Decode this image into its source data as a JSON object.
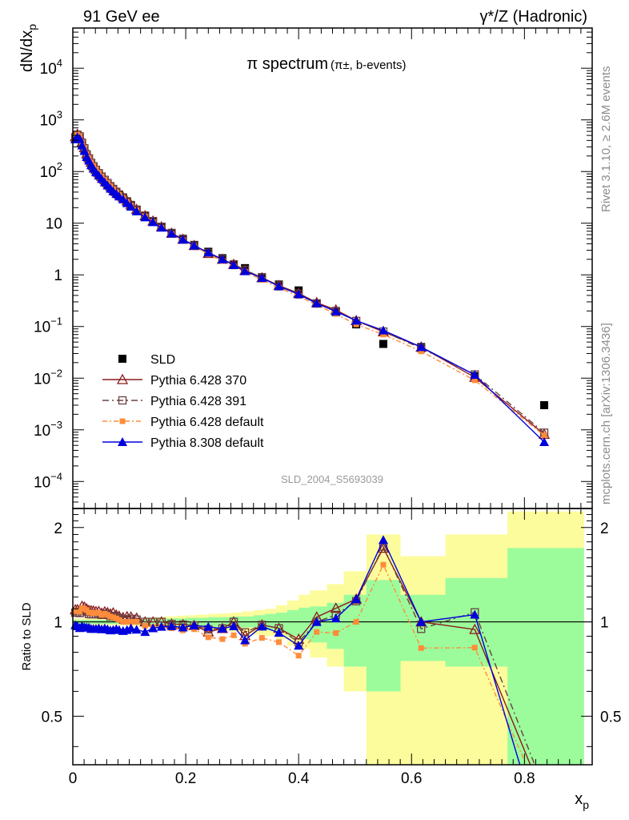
{
  "header": {
    "left": "91 GeV ee",
    "right": "γ*/Z (Hadronic)"
  },
  "side": {
    "top": "Rivet 3.1.10, ≥ 2.6M events",
    "bottom": "mcplots.cern.ch [arXiv:1306.3436]"
  },
  "chart_data": {
    "type": "line",
    "title": "π spectrum",
    "subtitle": "(π±, b-events)",
    "watermark": "SLD_2004_S5693039",
    "xlabel": "x",
    "xlabel_sub": "p",
    "ylabel": "dN/dx",
    "ylabel_sub": "p",
    "ratio_ylabel": "Ratio to SLD",
    "xlim": [
      0,
      0.92
    ],
    "ylim": [
      3e-05,
      60000
    ],
    "ylog": true,
    "ratio_ylim": [
      0.35,
      2.3
    ],
    "ratio_ylog": true,
    "x_ticks": [
      "0",
      "0.2",
      "0.4",
      "0.6",
      "0.8"
    ],
    "ratio_ticks": [
      "0.5",
      "1",
      "2"
    ],
    "y_ticks": [
      {
        "base": "10",
        "exp": "4"
      },
      {
        "base": "10",
        "exp": "3"
      },
      {
        "base": "10",
        "exp": "2"
      },
      {
        "base": "10",
        "exp": ""
      },
      {
        "base": "1",
        "exp": ""
      },
      {
        "base": "10",
        "exp": "−1"
      },
      {
        "base": "10",
        "exp": "−2"
      },
      {
        "base": "10",
        "exp": "−3"
      },
      {
        "base": "10",
        "exp": "−4"
      }
    ],
    "x": [
      0.0044,
      0.0081,
      0.0122,
      0.0163,
      0.0205,
      0.0245,
      0.0285,
      0.0325,
      0.0365,
      0.041,
      0.046,
      0.051,
      0.0565,
      0.0615,
      0.0665,
      0.0715,
      0.077,
      0.082,
      0.089,
      0.096,
      0.103,
      0.113,
      0.128,
      0.142,
      0.157,
      0.175,
      0.195,
      0.215,
      0.24,
      0.265,
      0.285,
      0.305,
      0.335,
      0.365,
      0.4,
      0.432,
      0.466,
      0.502,
      0.55,
      0.617,
      0.712,
      0.835
    ],
    "series": [
      {
        "name": "SLD",
        "values": [
          430,
          480,
          450,
          330,
          260,
          200,
          170,
          140,
          120,
          102,
          88,
          76,
          65,
          57,
          50,
          44,
          39,
          35,
          31,
          26,
          22,
          18,
          14,
          11,
          8.5,
          6.5,
          5,
          3.8,
          2.8,
          2.1,
          1.6,
          1.35,
          0.9,
          0.65,
          0.5,
          0.28,
          0.19,
          0.11,
          0.046,
          0.04,
          0.011,
          0.003
        ]
      },
      {
        "name": "Pythia 6.428 370",
        "values": [
          470,
          525,
          490,
          370,
          290,
          220,
          185,
          152,
          130,
          110,
          95,
          81,
          70,
          61,
          53,
          47,
          41,
          36.5,
          32,
          27,
          22.8,
          18.5,
          14,
          11,
          8.5,
          6.4,
          4.9,
          3.7,
          2.6,
          2.0,
          1.6,
          1.22,
          0.88,
          0.62,
          0.44,
          0.29,
          0.21,
          0.13,
          0.079,
          0.04,
          0.0104,
          0.00082
        ]
      },
      {
        "name": "Pythia 6.428 391",
        "values": [
          460,
          515,
          480,
          360,
          283,
          215,
          180,
          148,
          127,
          108,
          93,
          80,
          69,
          60,
          52,
          46,
          40.5,
          36,
          31.5,
          26.5,
          22.5,
          18.3,
          14,
          11,
          8.5,
          6.4,
          4.9,
          3.7,
          2.65,
          2.0,
          1.6,
          1.25,
          0.88,
          0.62,
          0.43,
          0.28,
          0.2,
          0.128,
          0.08,
          0.038,
          0.0118,
          0.00088
        ]
      },
      {
        "name": "Pythia 6.428 default",
        "values": [
          465,
          520,
          485,
          365,
          286,
          218,
          182,
          150,
          128,
          109,
          94,
          80,
          69,
          60,
          52,
          45.5,
          40,
          35.5,
          31,
          26,
          22,
          18,
          13.6,
          10.6,
          8.2,
          6.2,
          4.7,
          3.6,
          2.5,
          1.85,
          1.45,
          1.15,
          0.8,
          0.56,
          0.39,
          0.26,
          0.175,
          0.11,
          0.07,
          0.033,
          0.0091,
          0.00078
        ]
      },
      {
        "name": "Pythia 8.308 default",
        "values": [
          420,
          465,
          430,
          320,
          250,
          192,
          163,
          133,
          114,
          97,
          84,
          72,
          62,
          54,
          47,
          41.5,
          37,
          33,
          29,
          24.5,
          21,
          17,
          13,
          10.5,
          8.2,
          6.3,
          4.8,
          3.7,
          2.7,
          2.0,
          1.55,
          1.18,
          0.87,
          0.6,
          0.42,
          0.28,
          0.195,
          0.13,
          0.084,
          0.04,
          0.0116,
          0.00058
        ]
      }
    ],
    "bands": {
      "x_edges": [
        0.0,
        0.02,
        0.04,
        0.06,
        0.08,
        0.1,
        0.12,
        0.14,
        0.16,
        0.18,
        0.2,
        0.22,
        0.24,
        0.26,
        0.28,
        0.3,
        0.32,
        0.34,
        0.36,
        0.38,
        0.4,
        0.42,
        0.45,
        0.48,
        0.52,
        0.58,
        0.66,
        0.77,
        0.905
      ],
      "stat_lo": [
        0.985,
        0.985,
        0.985,
        0.985,
        0.985,
        0.98,
        0.98,
        0.98,
        0.975,
        0.975,
        0.97,
        0.97,
        0.965,
        0.965,
        0.96,
        0.96,
        0.95,
        0.94,
        0.93,
        0.9,
        0.88,
        0.86,
        0.82,
        0.72,
        0.6,
        0.75,
        0.72,
        0.35
      ],
      "stat_hi": [
        1.015,
        1.015,
        1.015,
        1.015,
        1.015,
        1.02,
        1.02,
        1.02,
        1.025,
        1.025,
        1.03,
        1.03,
        1.035,
        1.035,
        1.04,
        1.04,
        1.05,
        1.06,
        1.07,
        1.09,
        1.11,
        1.12,
        1.15,
        1.22,
        1.36,
        1.22,
        1.38,
        1.72
      ],
      "sys_lo": [
        0.975,
        0.975,
        0.975,
        0.975,
        0.975,
        0.97,
        0.97,
        0.965,
        0.96,
        0.955,
        0.95,
        0.945,
        0.94,
        0.935,
        0.93,
        0.92,
        0.91,
        0.9,
        0.88,
        0.84,
        0.82,
        0.77,
        0.72,
        0.6,
        0.35,
        0.35,
        0.35,
        0.35
      ],
      "sys_hi": [
        1.025,
        1.025,
        1.025,
        1.025,
        1.025,
        1.03,
        1.03,
        1.035,
        1.04,
        1.045,
        1.05,
        1.055,
        1.06,
        1.065,
        1.07,
        1.08,
        1.09,
        1.1,
        1.13,
        1.17,
        1.22,
        1.26,
        1.32,
        1.45,
        1.9,
        1.62,
        1.9,
        2.25
      ]
    },
    "colors": {
      "SLD": "#000000",
      "Pythia 6.428 370": "#8b1a1a",
      "Pythia 6.428 391": "#6b4040",
      "Pythia 6.428 default": "#ff8c3a",
      "Pythia 8.308 default": "#0000dd",
      "stat_band": "#9cfc9c",
      "sys_band": "#fcfc9c"
    },
    "legend_position": "bottom-left",
    "grid": false
  }
}
